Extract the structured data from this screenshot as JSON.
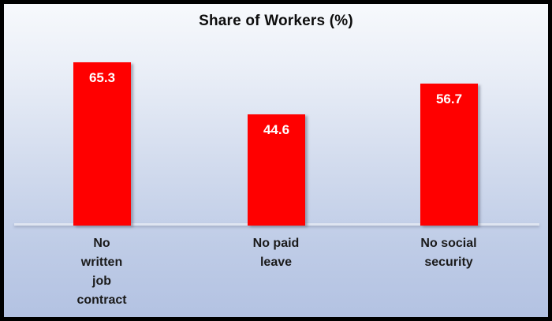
{
  "chart_data": {
    "type": "bar",
    "title": "Share of Workers (%)",
    "categories": [
      "No written job contract",
      "No paid leave",
      "No social security"
    ],
    "category_display": [
      "No\nwritten\njob\ncontract",
      "No paid\nleave",
      "No social\nsecurity"
    ],
    "values": [
      65.3,
      44.6,
      56.7
    ],
    "value_labels": [
      "65.3",
      "44.6",
      "56.7"
    ],
    "bar_color": "#FF0000",
    "value_label_color": "#FFFFFF",
    "xlabel": "",
    "ylabel": "",
    "ylim": [
      0,
      80
    ],
    "grid": false,
    "legend": false,
    "y_axis_visible": false,
    "data_label_position": "inside-end",
    "background": "blue-gradient",
    "frame_color": "#000000"
  }
}
